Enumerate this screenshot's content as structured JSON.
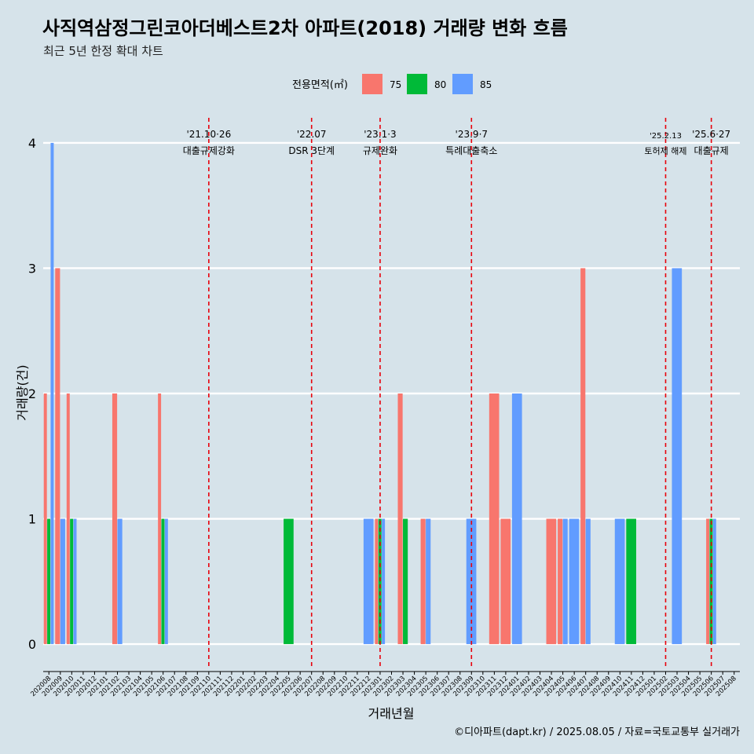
{
  "chart_data": {
    "type": "bar",
    "title": "사직역삼정그린코아더베스트2차 아파트(2018) 거래량 변화 흐름",
    "subtitle": "최근 5년 한정 확대 차트",
    "xlabel": "거래년월",
    "ylabel": "거래량(건)",
    "ylim": [
      -0.2,
      4.2
    ],
    "yticks": [
      0,
      1,
      2,
      3,
      4
    ],
    "grid": true,
    "legend": {
      "title": "전용면적(㎡)",
      "position": "top",
      "items": [
        {
          "label": "75",
          "color": "#f8766d"
        },
        {
          "label": "80",
          "color": "#00ba38"
        },
        {
          "label": "85",
          "color": "#619cff"
        }
      ]
    },
    "months": [
      "202008",
      "202009",
      "202010",
      "202011",
      "202012",
      "202101",
      "202102",
      "202103",
      "202104",
      "202105",
      "202106",
      "202107",
      "202108",
      "202109",
      "202110",
      "202111",
      "202112",
      "202201",
      "202202",
      "202203",
      "202204",
      "202205",
      "202206",
      "202207",
      "202208",
      "202209",
      "202210",
      "202211",
      "202212",
      "202301",
      "202302",
      "202303",
      "202304",
      "202305",
      "202306",
      "202307",
      "202308",
      "202309",
      "202310",
      "202311",
      "202312",
      "202401",
      "202402",
      "202403",
      "202404",
      "202405",
      "202406",
      "202407",
      "202408",
      "202409",
      "202410",
      "202411",
      "202412",
      "202501",
      "202502",
      "202503",
      "202504",
      "202505",
      "202506",
      "202507",
      "202508"
    ],
    "series": [
      {
        "name": "75",
        "color": "#f8766d",
        "points": [
          {
            "month": "202008",
            "value": 2
          },
          {
            "month": "202009",
            "value": 3
          },
          {
            "month": "202010",
            "value": 2
          },
          {
            "month": "202102",
            "value": 2
          },
          {
            "month": "202106",
            "value": 2
          },
          {
            "month": "202301",
            "value": 1
          },
          {
            "month": "202303",
            "value": 2
          },
          {
            "month": "202305",
            "value": 1
          },
          {
            "month": "202311",
            "value": 2
          },
          {
            "month": "202312",
            "value": 1
          },
          {
            "month": "202404",
            "value": 1
          },
          {
            "month": "202405",
            "value": 1
          },
          {
            "month": "202407",
            "value": 3
          },
          {
            "month": "202506",
            "value": 1
          }
        ]
      },
      {
        "name": "80",
        "color": "#00ba38",
        "points": [
          {
            "month": "202008",
            "value": 1
          },
          {
            "month": "202010",
            "value": 1
          },
          {
            "month": "202106",
            "value": 1
          },
          {
            "month": "202205",
            "value": 1
          },
          {
            "month": "202301",
            "value": 1
          },
          {
            "month": "202303",
            "value": 1
          },
          {
            "month": "202411",
            "value": 1
          },
          {
            "month": "202506",
            "value": 1
          }
        ]
      },
      {
        "name": "85",
        "color": "#619cff",
        "points": [
          {
            "month": "202008",
            "value": 4
          },
          {
            "month": "202009",
            "value": 1
          },
          {
            "month": "202010",
            "value": 1
          },
          {
            "month": "202102",
            "value": 1
          },
          {
            "month": "202106",
            "value": 1
          },
          {
            "month": "202212",
            "value": 1
          },
          {
            "month": "202301",
            "value": 1
          },
          {
            "month": "202305",
            "value": 1
          },
          {
            "month": "202309",
            "value": 1
          },
          {
            "month": "202401",
            "value": 2
          },
          {
            "month": "202405",
            "value": 1
          },
          {
            "month": "202406",
            "value": 1
          },
          {
            "month": "202407",
            "value": 1
          },
          {
            "month": "202410",
            "value": 1
          },
          {
            "month": "202503",
            "value": 3
          },
          {
            "month": "202506",
            "value": 1
          }
        ]
      }
    ],
    "events": [
      {
        "month": "202110",
        "date": "'21.10·26",
        "label": "대출규제강화"
      },
      {
        "month": "202207",
        "date": "'22.07",
        "label": "DSR 3단계"
      },
      {
        "month": "202301",
        "date": "'23.1·3",
        "label": "규제완화"
      },
      {
        "month": "202309",
        "date": "'23.9·7",
        "label": "특례대출축소"
      },
      {
        "month": "202502",
        "date": "'25.2.13",
        "label": "토허제 해제"
      },
      {
        "month": "202506",
        "date": "'25.6·27",
        "label": "대출규제"
      }
    ],
    "caption": "©디아파트(dapt.kr) / 2025.08.05 / 자료=국토교통부 실거래가"
  }
}
